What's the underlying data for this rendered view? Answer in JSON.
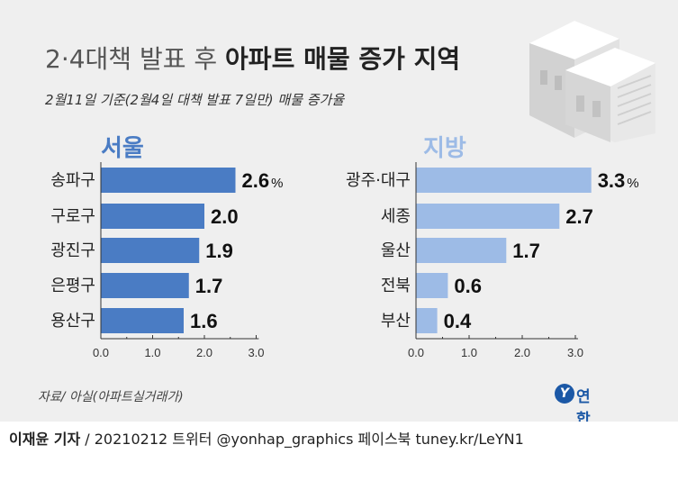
{
  "header": {
    "title_light": "2·4대책 발표 후",
    "title_bold": "아파트 매물 증가 지역",
    "subtitle": "2월11일 기준(2월4일 대책 발표 7일만) 매물 증가율"
  },
  "source": "자료/ 아실(아파트실거래가)",
  "logo_text": "연합뉴스",
  "byline": {
    "author": "이재윤 기자",
    "rest": " / 20210212   트위터 @yonhap_graphics  페이스북 tuney.kr/LeYN1"
  },
  "colors": {
    "seoul_bar": "#4a7cc4",
    "seoul_title": "#4a7cc4",
    "region_bar": "#9dbbe6",
    "region_title": "#9dbbe6"
  },
  "chart_data": [
    {
      "type": "bar",
      "orientation": "horizontal",
      "title": "서울",
      "categories": [
        "송파구",
        "구로구",
        "광진구",
        "은평구",
        "용산구"
      ],
      "values": [
        2.6,
        2.0,
        1.9,
        1.7,
        1.6
      ],
      "data_labels": [
        "2.6",
        "2.0",
        "1.9",
        "1.7",
        "1.6"
      ],
      "first_label_suffix": "%",
      "xticks": [
        "0.0",
        "1.0",
        "2.0",
        "3.0"
      ],
      "xlim": [
        0,
        3.0
      ],
      "grid": false,
      "unit": "%"
    },
    {
      "type": "bar",
      "orientation": "horizontal",
      "title": "지방",
      "categories": [
        "광주·대구",
        "세종",
        "울산",
        "전북",
        "부산"
      ],
      "values": [
        3.3,
        2.7,
        1.7,
        0.6,
        0.4
      ],
      "data_labels": [
        "3.3",
        "2.7",
        "1.7",
        "0.6",
        "0.4"
      ],
      "first_label_suffix": "%",
      "xticks": [
        "0.0",
        "1.0",
        "2.0",
        "3.0"
      ],
      "xlim": [
        0,
        3.0
      ],
      "grid": false,
      "unit": "%"
    }
  ]
}
